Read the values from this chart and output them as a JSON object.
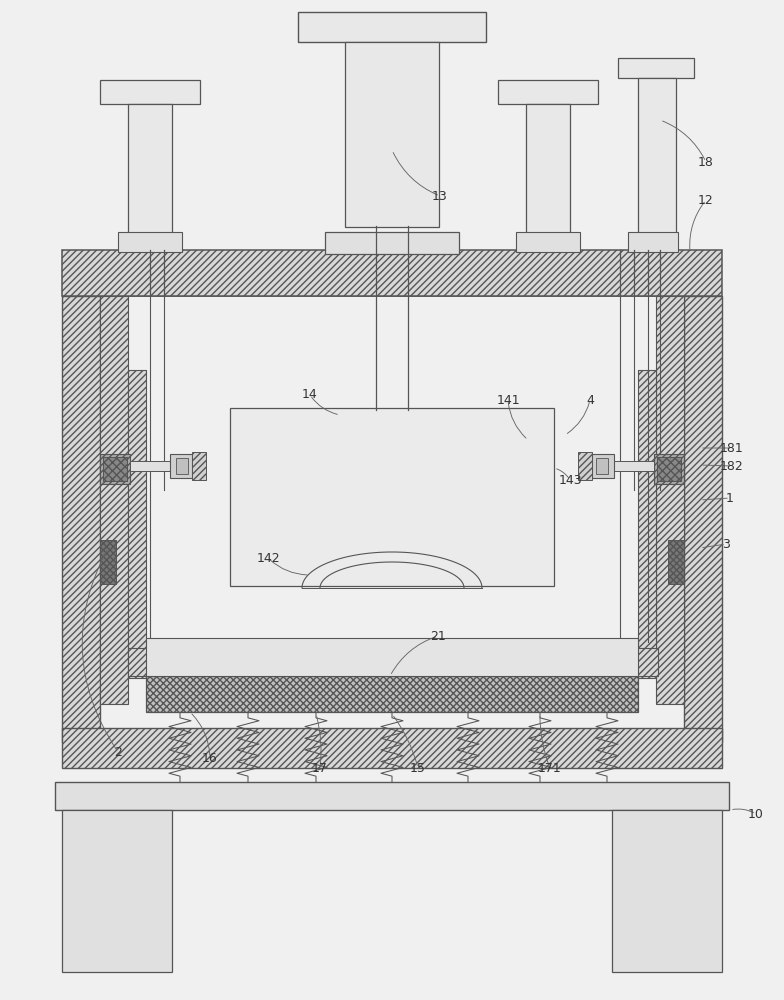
{
  "bg_color": "#f0f0f0",
  "line_color": "#555555",
  "label_color": "#333333"
}
